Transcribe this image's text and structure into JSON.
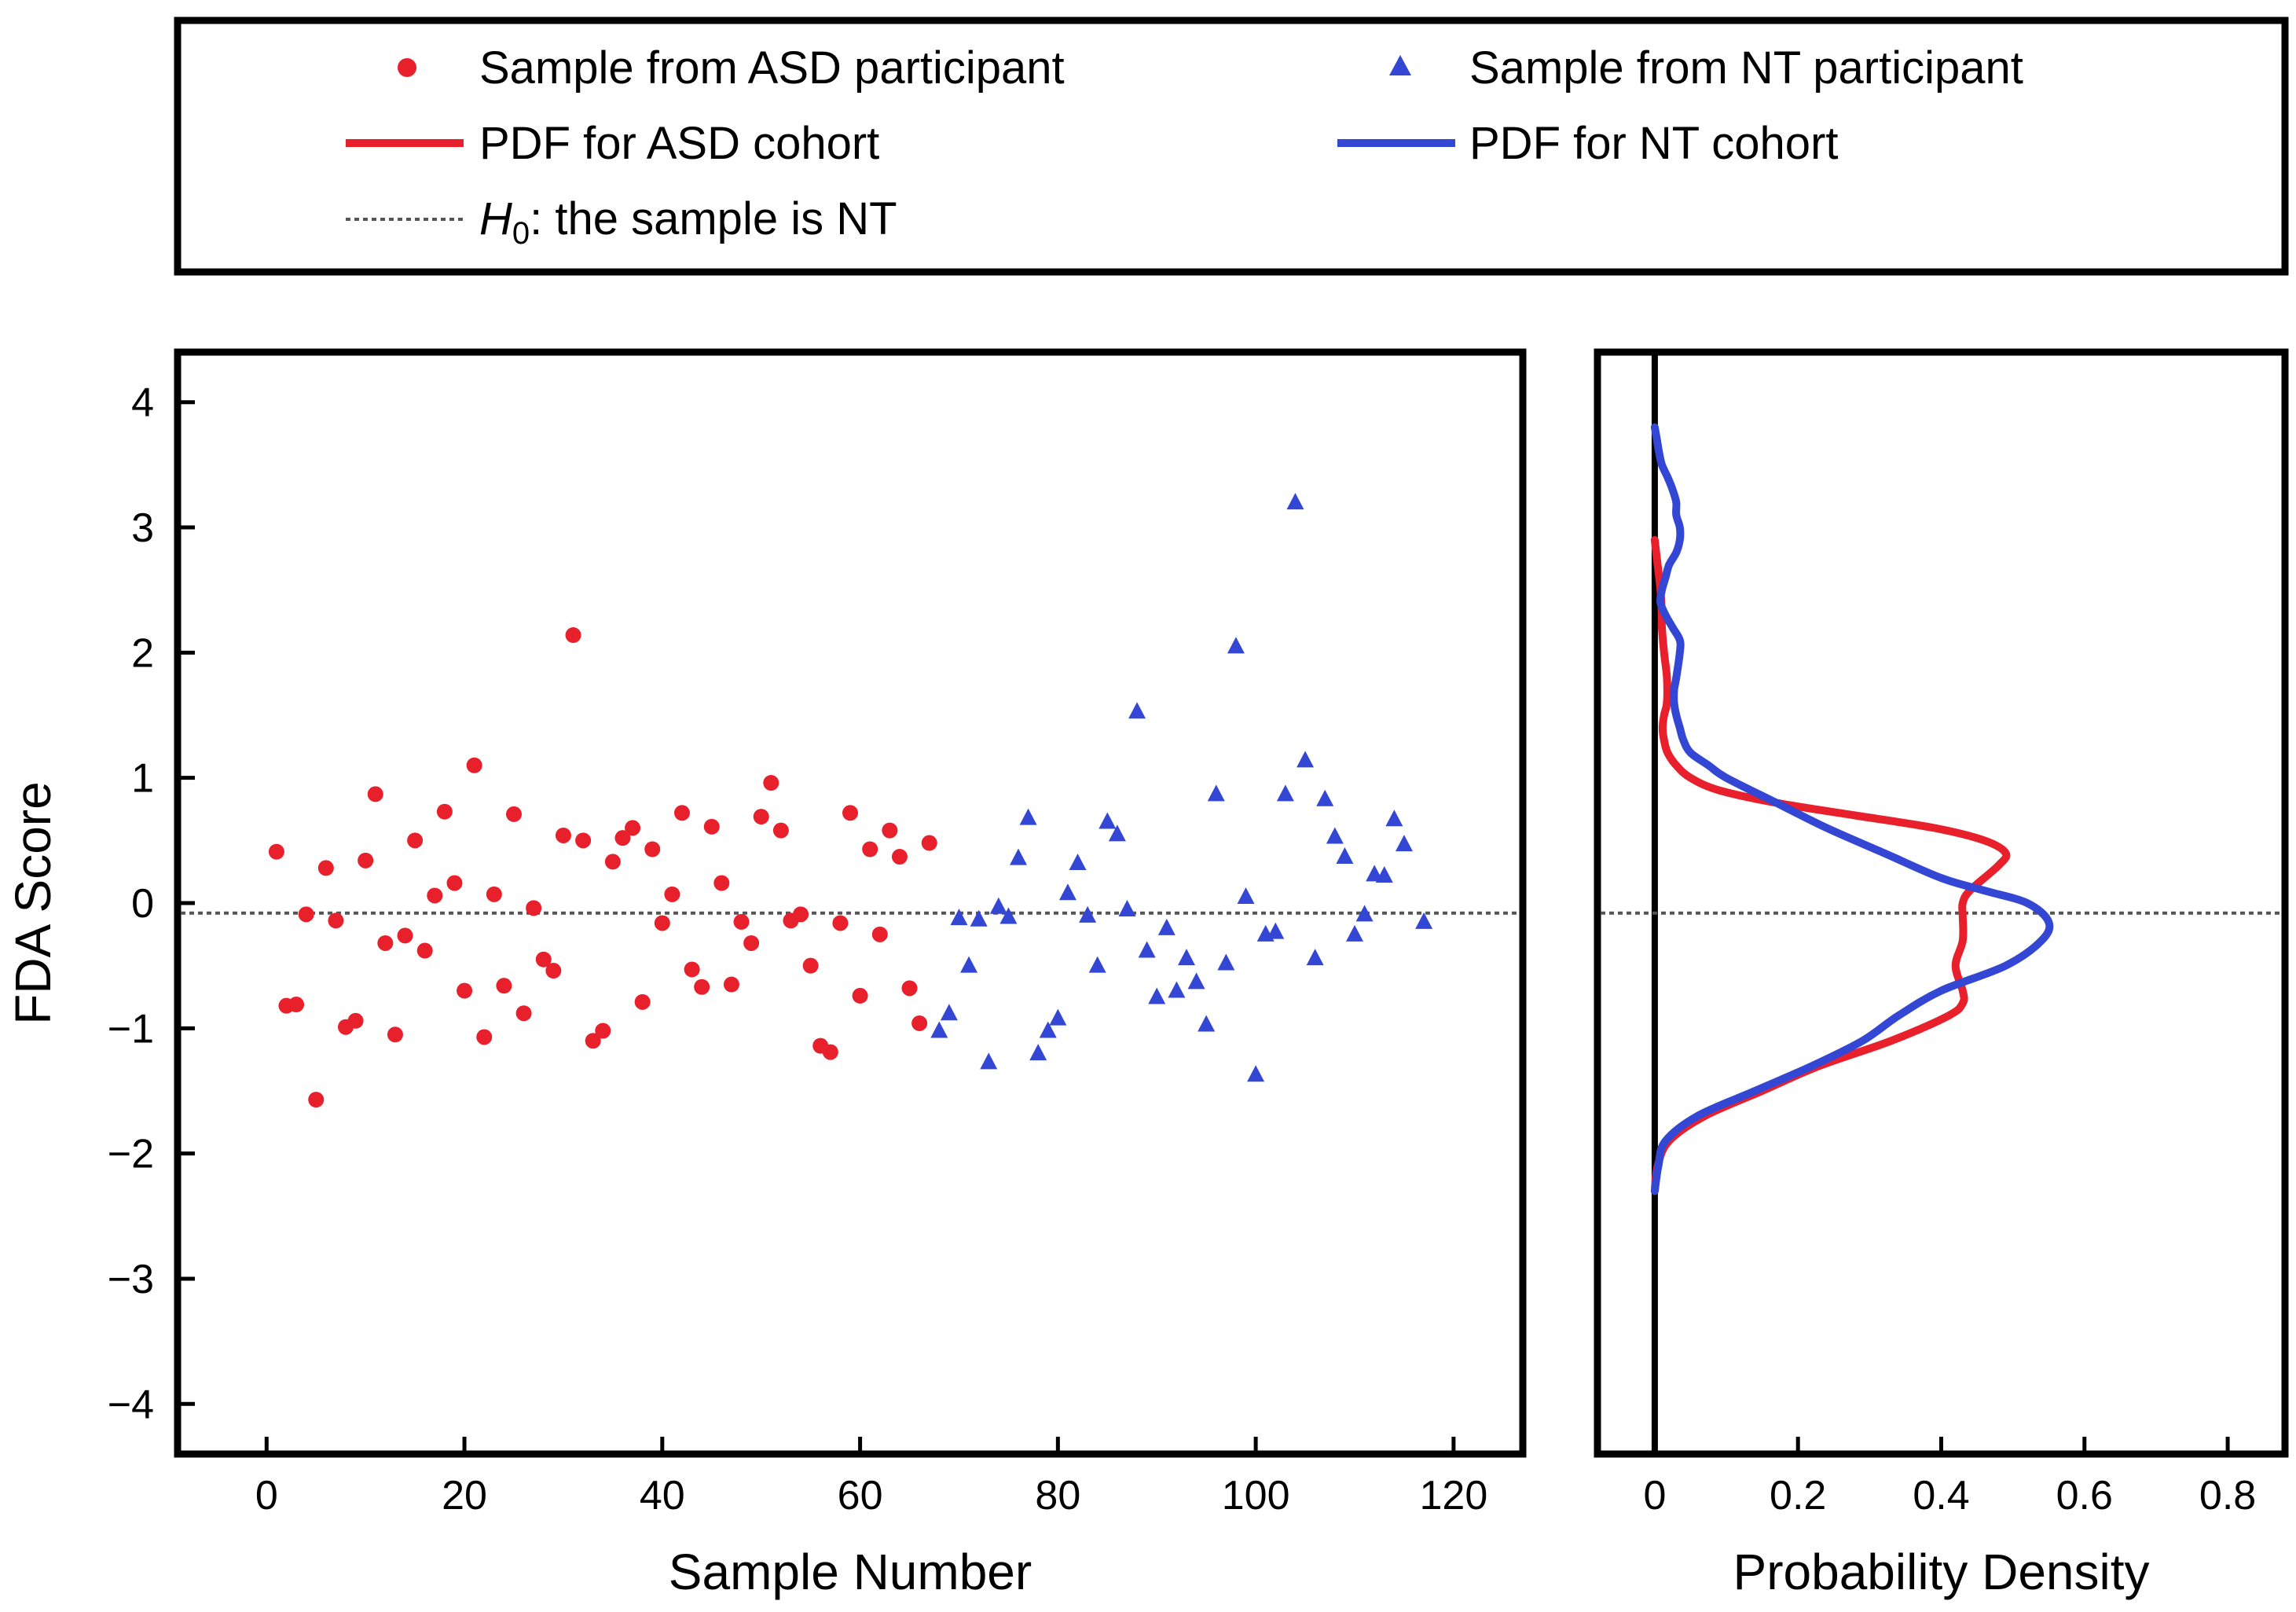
{
  "legend": {
    "asd_sample": "Sample from ASD participant",
    "nt_sample": "Sample from NT participant",
    "asd_pdf": "PDF for ASD cohort",
    "nt_pdf": "PDF for NT cohort",
    "h0_symbol": "H",
    "h0_subscript": "0",
    "h0_text": ": the sample is NT"
  },
  "colors": {
    "asd": "#e8202c",
    "nt": "#3347d4",
    "frame": "#000000",
    "reference": "#555555"
  },
  "chart_data": [
    {
      "type": "scatter",
      "name": "main-scatter",
      "xlabel": "Sample Number",
      "ylabel": "FDA Score",
      "xlim": [
        -9,
        127
      ],
      "ylim": [
        -4.4,
        4.4
      ],
      "xticks": [
        0,
        20,
        40,
        60,
        80,
        100,
        120
      ],
      "yticks": [
        4,
        3,
        2,
        1,
        0,
        -1,
        -2,
        -3,
        -4
      ],
      "ytick_labels": [
        "4",
        "3",
        "2",
        "1",
        "0",
        "−1",
        "−2",
        "−3",
        "−4"
      ],
      "threshold_y": -0.08,
      "series": [
        {
          "name": "Sample from ASD participant",
          "marker": "circle",
          "x": [
            1,
            2,
            3,
            4,
            5,
            6,
            7,
            8,
            9,
            10,
            11,
            12,
            13,
            14,
            15,
            16,
            17,
            18,
            19,
            20,
            21,
            22,
            23,
            24,
            25,
            26,
            27,
            28,
            29,
            30,
            31,
            32,
            33,
            34,
            35,
            36,
            37,
            38,
            39,
            40,
            41,
            42,
            43,
            44,
            45,
            46,
            47,
            48,
            49,
            50,
            51,
            52,
            53,
            54,
            55,
            56,
            57,
            58,
            59,
            60,
            61,
            62,
            63,
            64,
            65,
            66,
            67
          ],
          "y": [
            0.41,
            -0.82,
            -0.81,
            -0.09,
            -1.57,
            0.28,
            -0.14,
            -0.99,
            -0.94,
            0.34,
            0.87,
            -0.32,
            -1.05,
            -0.26,
            0.5,
            -0.38,
            0.06,
            0.73,
            0.16,
            -0.7,
            1.1,
            -1.07,
            0.07,
            -0.66,
            0.71,
            -0.88,
            -0.04,
            -0.45,
            -0.54,
            0.54,
            2.14,
            0.5,
            -1.1,
            -1.02,
            0.33,
            0.52,
            0.6,
            -0.79,
            0.43,
            -0.16,
            0.07,
            0.72,
            -0.53,
            -0.67,
            0.61,
            0.16,
            -0.65,
            -0.15,
            -0.32,
            0.69,
            0.96,
            0.58,
            -0.14,
            -0.09,
            -0.5,
            -1.14,
            -1.19,
            -0.16,
            0.72,
            -0.74,
            0.43,
            -0.25,
            0.58,
            0.37,
            -0.68,
            -0.96,
            0.48
          ]
        },
        {
          "name": "Sample from NT participant",
          "marker": "triangle",
          "x": [
            68,
            69,
            70,
            71,
            72,
            73,
            74,
            75,
            76,
            77,
            78,
            79,
            80,
            81,
            82,
            83,
            84,
            85,
            86,
            87,
            88,
            89,
            90,
            91,
            92,
            93,
            94,
            95,
            96,
            97,
            98,
            99,
            100,
            101,
            102,
            103,
            104,
            105,
            106,
            107,
            108,
            109,
            110,
            111,
            112,
            113,
            114,
            115,
            117
          ],
          "y": [
            -1.02,
            -0.88,
            -0.12,
            -0.5,
            -0.13,
            -1.27,
            -0.03,
            -0.11,
            0.36,
            0.68,
            -1.2,
            -1.02,
            -0.92,
            0.08,
            0.32,
            -0.1,
            -0.5,
            0.65,
            0.55,
            -0.05,
            1.53,
            -0.38,
            -0.75,
            -0.2,
            -0.7,
            -0.44,
            -0.63,
            -0.97,
            0.87,
            -0.48,
            2.05,
            0.05,
            -1.37,
            -0.25,
            -0.23,
            0.87,
            3.2,
            1.14,
            -0.44,
            0.83,
            0.53,
            0.37,
            -0.25,
            -0.09,
            0.23,
            0.22,
            0.67,
            0.47,
            -0.15
          ]
        }
      ]
    },
    {
      "type": "line",
      "name": "density-panel",
      "orientation": "horizontal-density",
      "xlabel": "Probability Density",
      "xlim": [
        -0.08,
        0.88
      ],
      "ylim": [
        -4.4,
        4.4
      ],
      "xticks": [
        0,
        0.2,
        0.4,
        0.6,
        0.8
      ],
      "xtick_labels": [
        "0",
        "0.2",
        "0.4",
        "0.6",
        "0.8"
      ],
      "threshold_y": -0.08,
      "zero_line_x": 0,
      "series": [
        {
          "name": "PDF for ASD cohort",
          "y": [
            -2.3,
            -2.1,
            -1.9,
            -1.7,
            -1.5,
            -1.3,
            -1.1,
            -0.9,
            -0.8,
            -0.7,
            -0.5,
            -0.3,
            -0.1,
            0.0,
            0.1,
            0.3,
            0.4,
            0.5,
            0.6,
            0.7,
            0.8,
            0.9,
            1.0,
            1.1,
            1.2,
            1.3,
            1.4,
            1.5,
            1.6,
            1.8,
            2.0,
            2.2,
            2.3,
            2.5,
            2.7,
            2.9
          ],
          "density": [
            0.0,
            0.004,
            0.02,
            0.07,
            0.15,
            0.23,
            0.33,
            0.41,
            0.43,
            0.43,
            0.42,
            0.43,
            0.43,
            0.43,
            0.44,
            0.48,
            0.49,
            0.46,
            0.39,
            0.28,
            0.17,
            0.09,
            0.05,
            0.03,
            0.018,
            0.013,
            0.011,
            0.013,
            0.017,
            0.017,
            0.013,
            0.01,
            0.01,
            0.008,
            0.004,
            0.0
          ]
        },
        {
          "name": "PDF for NT cohort",
          "y": [
            -2.3,
            -2.1,
            -1.9,
            -1.7,
            -1.5,
            -1.3,
            -1.1,
            -0.9,
            -0.7,
            -0.5,
            -0.3,
            -0.15,
            0.0,
            0.1,
            0.2,
            0.4,
            0.6,
            0.8,
            1.0,
            1.1,
            1.2,
            1.3,
            1.4,
            1.5,
            1.6,
            1.7,
            1.8,
            2.0,
            2.1,
            2.2,
            2.3,
            2.4,
            2.5,
            2.6,
            2.7,
            2.8,
            2.9,
            3.0,
            3.1,
            3.2,
            3.3,
            3.4,
            3.5,
            3.6,
            3.7,
            3.8
          ],
          "density": [
            0.0,
            0.005,
            0.015,
            0.06,
            0.14,
            0.22,
            0.29,
            0.34,
            0.4,
            0.49,
            0.54,
            0.55,
            0.52,
            0.46,
            0.4,
            0.32,
            0.24,
            0.17,
            0.1,
            0.075,
            0.05,
            0.04,
            0.035,
            0.03,
            0.027,
            0.027,
            0.03,
            0.035,
            0.035,
            0.025,
            0.015,
            0.008,
            0.01,
            0.015,
            0.02,
            0.03,
            0.035,
            0.035,
            0.03,
            0.03,
            0.025,
            0.018,
            0.01,
            0.006,
            0.003,
            0.0
          ]
        }
      ]
    }
  ]
}
